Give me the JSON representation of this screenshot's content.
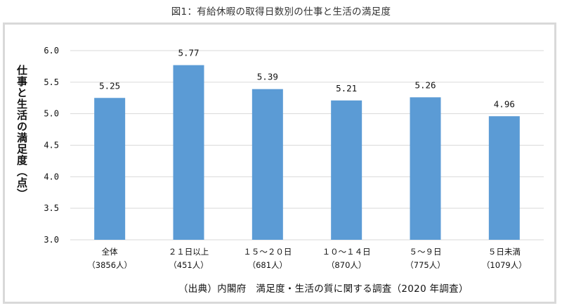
{
  "chart_data": {
    "type": "bar",
    "title": "図1：有給休暇の取得日数別の仕事と生活の満足度",
    "ylabel": "仕事と生活の満足度（点）",
    "xlabel": "",
    "ylim": [
      3.0,
      6.0
    ],
    "yticks": [
      "3.0",
      "3.5",
      "4.0",
      "4.5",
      "5.0",
      "5.5",
      "6.0"
    ],
    "grid": true,
    "categories": [
      {
        "name": "全体",
        "count": "（3856人）"
      },
      {
        "name": "２１日以上",
        "count": "（451人）"
      },
      {
        "name": "１５～２０日",
        "count": "（681人）"
      },
      {
        "name": "１０～１４日",
        "count": "（870人）"
      },
      {
        "name": "５～９日",
        "count": "（775人）"
      },
      {
        "name": "５日未満",
        "count": "（1079人）"
      }
    ],
    "values": [
      5.25,
      5.77,
      5.39,
      5.21,
      5.26,
      4.96
    ],
    "value_labels": [
      "5.25",
      "5.77",
      "5.39",
      "5.21",
      "5.26",
      "4.96"
    ],
    "bar_color": "#5b9bd5",
    "grid_color": "#d9d9d9"
  },
  "source_note": "（出典）内閣府　満足度・生活の質に関する調査（2020 年調査）"
}
